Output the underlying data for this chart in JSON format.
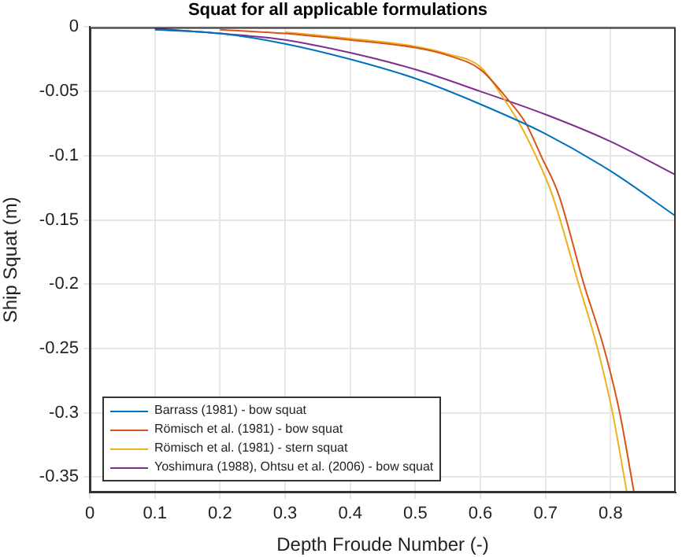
{
  "chart_data": {
    "type": "line",
    "title": "Squat for all applicable formulations",
    "xlabel": "Depth Froude Number (-)",
    "ylabel": "Ship Squat (m)",
    "xlim": [
      0,
      0.9
    ],
    "ylim": [
      -0.362,
      0
    ],
    "xticks": [
      0,
      0.1,
      0.2,
      0.3,
      0.4,
      0.5,
      0.6,
      0.7,
      0.8
    ],
    "yticks": [
      0,
      -0.05,
      -0.1,
      -0.15,
      -0.2,
      -0.25,
      -0.3,
      -0.35
    ],
    "grid": true,
    "legend": "bottom left",
    "marker": "none",
    "line_style": "solid",
    "series": [
      {
        "name": "Barrass (1981) - bow squat",
        "color": "#0072bd",
        "x": [
          0.1,
          0.2,
          0.3,
          0.4,
          0.5,
          0.6,
          0.7,
          0.8,
          0.9
        ],
        "values": [
          -0.002,
          -0.005,
          -0.013,
          -0.025,
          -0.04,
          -0.06,
          -0.083,
          -0.112,
          -0.147
        ]
      },
      {
        "name": "Römisch et al. (1981) - bow squat",
        "color": "#d95319",
        "x": [
          0.2,
          0.3,
          0.4,
          0.5,
          0.55,
          0.6,
          0.64,
          0.67,
          0.693,
          0.72,
          0.759,
          0.79,
          0.814,
          0.836
        ],
        "values": [
          -0.002,
          -0.005,
          -0.01,
          -0.016,
          -0.022,
          -0.033,
          -0.055,
          -0.075,
          -0.1,
          -0.13,
          -0.2,
          -0.25,
          -0.3,
          -0.362
        ]
      },
      {
        "name": "Römisch et al. (1981) - stern squat",
        "color": "#edb120",
        "x": [
          0.3,
          0.4,
          0.5,
          0.55,
          0.6,
          0.635,
          0.66,
          0.685,
          0.71,
          0.751,
          0.78,
          0.803,
          0.825
        ],
        "values": [
          -0.004,
          -0.009,
          -0.015,
          -0.021,
          -0.031,
          -0.055,
          -0.075,
          -0.1,
          -0.13,
          -0.2,
          -0.25,
          -0.3,
          -0.362
        ]
      },
      {
        "name": "Yoshimura (1988), Ohtsu et al. (2006) - bow squat",
        "color": "#7e2f8e",
        "x": [
          0.1,
          0.2,
          0.3,
          0.4,
          0.5,
          0.6,
          0.7,
          0.8,
          0.9
        ],
        "values": [
          -0.001,
          -0.005,
          -0.01,
          -0.02,
          -0.033,
          -0.05,
          -0.068,
          -0.089,
          -0.115
        ]
      }
    ]
  }
}
